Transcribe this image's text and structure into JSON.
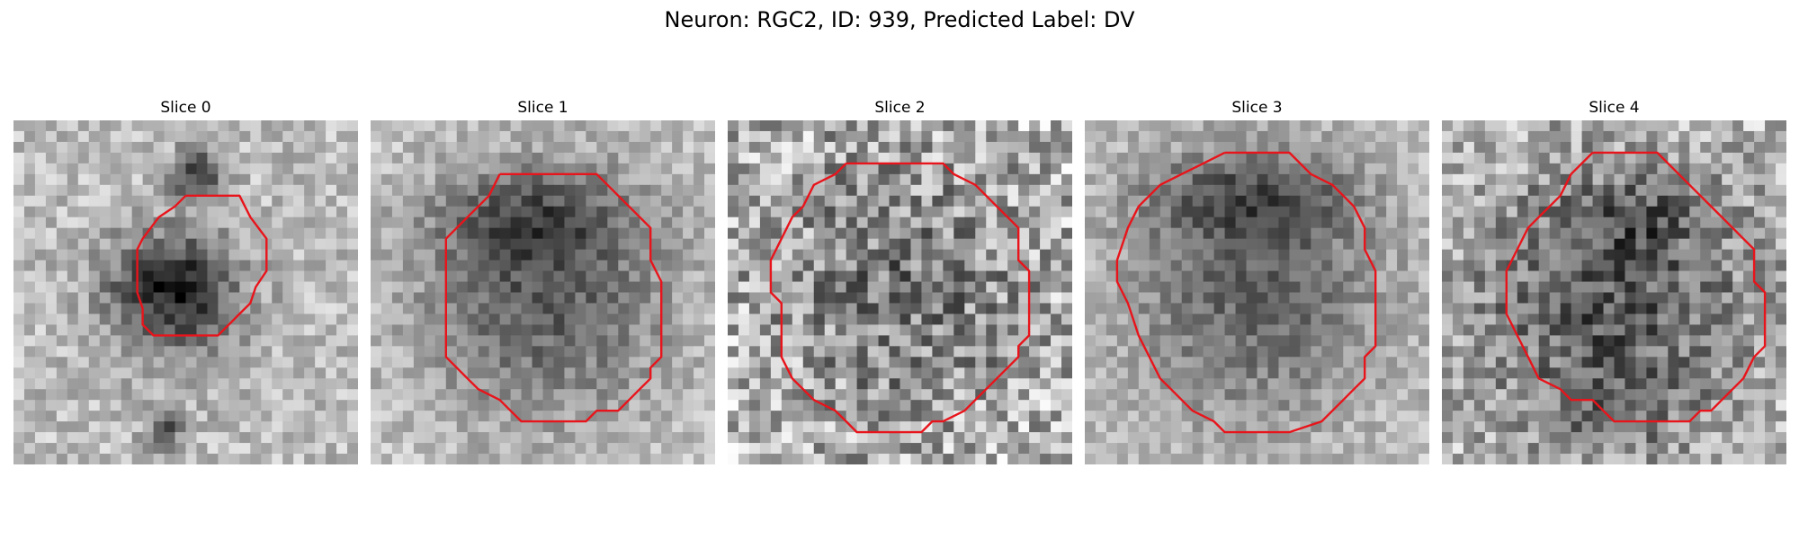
{
  "figure": {
    "title": "Neuron: RGC2, ID: 939, Predicted Label: DV",
    "neuron": "RGC2",
    "id": 939,
    "predicted_label": "DV"
  },
  "slices": [
    {
      "label": "Slice 0"
    },
    {
      "label": "Slice 1"
    },
    {
      "label": "Slice 2"
    },
    {
      "label": "Slice 3"
    },
    {
      "label": "Slice 4"
    }
  ],
  "colors": {
    "contour": "#e8141b",
    "background": "#ffffff"
  },
  "colormap": "gray"
}
